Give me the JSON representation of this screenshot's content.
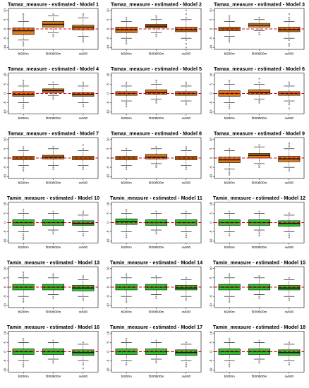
{
  "figure": {
    "panel_bg": "#ffffff",
    "frame_color": "#000000",
    "refline_color": "#dd0000",
    "colors": {
      "orange": "#d97c1e",
      "green": "#2fc42f"
    }
  },
  "chart_data": [
    {
      "type": "box",
      "title": "Tamax_measure - estimated - Model 1",
      "categories": [
        "bl200m",
        "f200t500m",
        "ov500"
      ],
      "yticks": [
        -10,
        -5,
        0,
        5,
        10
      ],
      "ylim": [
        -11,
        11
      ],
      "refline": 0,
      "color": "orange",
      "boxes": [
        {
          "whislo": -6,
          "q1": -3,
          "med": -1,
          "q3": 0.5,
          "whishi": 4,
          "fliers": [
            5,
            6,
            7,
            8,
            -7,
            -8,
            -9
          ]
        },
        {
          "whislo": -2,
          "q1": 1,
          "med": 2.5,
          "q3": 4,
          "whishi": 7,
          "fliers": [
            8,
            -3,
            -4
          ]
        },
        {
          "whislo": -4,
          "q1": -0.5,
          "med": 1,
          "q3": 2,
          "whishi": 6,
          "fliers": [
            7,
            8,
            -5,
            -6,
            -7
          ]
        }
      ]
    },
    {
      "type": "box",
      "title": "Tamax_measure - estimated - Model 2",
      "categories": [
        "bl200m",
        "f200t500m",
        "ov500"
      ],
      "yticks": [
        -10,
        -5,
        0,
        5,
        10
      ],
      "ylim": [
        -11,
        11
      ],
      "refline": 0,
      "color": "orange",
      "boxes": [
        {
          "whislo": -5,
          "q1": -2,
          "med": -0.5,
          "q3": 1,
          "whishi": 4,
          "fliers": [
            5,
            6,
            -6,
            -7,
            -8
          ]
        },
        {
          "whislo": -2,
          "q1": 0.5,
          "med": 1.5,
          "q3": 2.5,
          "whishi": 5,
          "fliers": [
            6,
            7,
            -3,
            -4
          ]
        },
        {
          "whislo": -5,
          "q1": -1.5,
          "med": -0.5,
          "q3": 1,
          "whishi": 5,
          "fliers": [
            6,
            8,
            10,
            -6,
            -8,
            -10
          ]
        }
      ]
    },
    {
      "type": "box",
      "title": "Tamax_measure - estimated - Model 3",
      "categories": [
        "bl200m",
        "f200t500m",
        "ov500"
      ],
      "yticks": [
        -10,
        -5,
        0,
        5,
        10
      ],
      "ylim": [
        -11,
        11
      ],
      "refline": 0,
      "color": "orange",
      "boxes": [
        {
          "whislo": -4,
          "q1": -1,
          "med": 0,
          "q3": 1,
          "whishi": 4,
          "fliers": [
            5,
            6,
            7,
            -5,
            -6,
            -7
          ]
        },
        {
          "whislo": -1,
          "q1": 1,
          "med": 2,
          "q3": 3,
          "whishi": 5,
          "fliers": [
            6,
            -2,
            -3
          ]
        },
        {
          "whislo": -5,
          "q1": -1.5,
          "med": -0.5,
          "q3": 1,
          "whishi": 4,
          "fliers": [
            5,
            6,
            8,
            -6,
            -8,
            -9
          ]
        }
      ]
    },
    {
      "type": "box",
      "title": "Tamax_measure - estimated - Model 4",
      "categories": [
        "bl200m",
        "f200t500m",
        "ov500"
      ],
      "yticks": [
        -10,
        -5,
        0,
        5,
        10
      ],
      "ylim": [
        -11,
        11
      ],
      "refline": 0,
      "color": "orange",
      "boxes": [
        {
          "whislo": -5,
          "q1": -1.5,
          "med": -0.5,
          "q3": 1,
          "whishi": 4,
          "fliers": [
            5,
            6,
            7,
            -6,
            -7,
            -8
          ]
        },
        {
          "whislo": -1,
          "q1": 0.5,
          "med": 1.5,
          "q3": 2.5,
          "whishi": 5,
          "fliers": [
            6,
            -2,
            -3
          ]
        },
        {
          "whislo": -5,
          "q1": -1.5,
          "med": -0.5,
          "q3": 0.5,
          "whishi": 4,
          "fliers": [
            5,
            6,
            -6,
            -7
          ]
        }
      ]
    },
    {
      "type": "box",
      "title": "Tamax_measure - estimated - Model 5",
      "categories": [
        "bl200m",
        "f200t500m",
        "ov500"
      ],
      "yticks": [
        -10,
        -5,
        0,
        5,
        10
      ],
      "ylim": [
        -11,
        11
      ],
      "refline": 0,
      "color": "orange",
      "boxes": [
        {
          "whislo": -4,
          "q1": -1,
          "med": 0,
          "q3": 1,
          "whishi": 4,
          "fliers": [
            5,
            6,
            -5,
            -6,
            -7
          ]
        },
        {
          "whislo": -3,
          "q1": -0.5,
          "med": 0.5,
          "q3": 2,
          "whishi": 5,
          "fliers": [
            6,
            7,
            -4,
            -5
          ]
        },
        {
          "whislo": -4,
          "q1": -1,
          "med": 0,
          "q3": 1,
          "whishi": 4,
          "fliers": [
            5,
            6,
            -5,
            -6
          ]
        }
      ]
    },
    {
      "type": "box",
      "title": "Tamax_measure - estimated - Model 6",
      "categories": [
        "bl200m",
        "f200t500m",
        "ov500"
      ],
      "yticks": [
        -10,
        -5,
        0,
        5,
        10
      ],
      "ylim": [
        -11,
        11
      ],
      "refline": 0,
      "color": "orange",
      "boxes": [
        {
          "whislo": -5,
          "q1": -1.5,
          "med": 0,
          "q3": 1.5,
          "whishi": 5,
          "fliers": [
            6,
            7,
            -6,
            -7,
            -8
          ]
        },
        {
          "whislo": -3,
          "q1": -0.5,
          "med": 0.5,
          "q3": 2,
          "whishi": 5,
          "fliers": [
            6,
            8,
            -4,
            -5
          ]
        },
        {
          "whislo": -4,
          "q1": -1,
          "med": 0,
          "q3": 1,
          "whishi": 4,
          "fliers": [
            5,
            6,
            -5,
            -6,
            -8
          ]
        }
      ]
    },
    {
      "type": "box",
      "title": "Tamax_measure - estimated - Model 7",
      "categories": [
        "bl200m",
        "f200t500m",
        "ov500"
      ],
      "yticks": [
        -10,
        -5,
        0,
        5,
        10
      ],
      "ylim": [
        -11,
        11
      ],
      "refline": 0,
      "color": "orange",
      "boxes": [
        {
          "whislo": -4,
          "q1": -1,
          "med": 0,
          "q3": 1,
          "whishi": 4,
          "fliers": [
            5,
            6,
            -5,
            -6,
            -7
          ]
        },
        {
          "whislo": -4,
          "q1": -0.5,
          "med": 0.5,
          "q3": 1.5,
          "whishi": 5,
          "fliers": [
            6,
            -5,
            -6
          ]
        },
        {
          "whislo": -4,
          "q1": -1,
          "med": 0,
          "q3": 1,
          "whishi": 4,
          "fliers": [
            5,
            7,
            -5,
            -6
          ]
        }
      ]
    },
    {
      "type": "box",
      "title": "Tamax_measure - estimated - Model 8",
      "categories": [
        "bl200m",
        "f200t500m",
        "ov500"
      ],
      "yticks": [
        -10,
        -5,
        0,
        5,
        10
      ],
      "ylim": [
        -11,
        11
      ],
      "refline": 0,
      "color": "orange",
      "boxes": [
        {
          "whislo": -4,
          "q1": -1,
          "med": 0,
          "q3": 1,
          "whishi": 4,
          "fliers": [
            5,
            -5,
            -6
          ]
        },
        {
          "whislo": -3,
          "q1": -0.5,
          "med": 0.5,
          "q3": 2,
          "whishi": 5,
          "fliers": [
            6,
            -4,
            -5
          ]
        },
        {
          "whislo": -4,
          "q1": -1,
          "med": 0,
          "q3": 1,
          "whishi": 4,
          "fliers": [
            5,
            6,
            -5,
            -6
          ]
        }
      ]
    },
    {
      "type": "box",
      "title": "Tamax_measure - estimated - Model 9",
      "categories": [
        "bl200m",
        "f200t500m",
        "ov500"
      ],
      "yticks": [
        -10,
        -5,
        0,
        5,
        10
      ],
      "ylim": [
        -11,
        11
      ],
      "refline": 0,
      "color": "orange",
      "boxes": [
        {
          "whislo": -6,
          "q1": -2.5,
          "med": -1,
          "q3": 0.5,
          "whishi": 4,
          "fliers": [
            5,
            -7,
            -8,
            -9
          ]
        },
        {
          "whislo": -3,
          "q1": 0,
          "med": 1.5,
          "q3": 2.5,
          "whishi": 6,
          "fliers": [
            7,
            -4,
            -5
          ]
        },
        {
          "whislo": -5,
          "q1": -2,
          "med": -0.5,
          "q3": 1,
          "whishi": 5,
          "fliers": [
            6,
            7,
            8,
            -6,
            -7
          ]
        }
      ]
    },
    {
      "type": "box",
      "title": "Tamin_measure - estimated - Model 10",
      "categories": [
        "bl200m",
        "f200t500m",
        "ov500"
      ],
      "yticks": [
        -10,
        -5,
        0,
        5,
        10
      ],
      "ylim": [
        -11,
        11
      ],
      "refline": 0,
      "color": "green",
      "boxes": [
        {
          "whislo": -5,
          "q1": -1.5,
          "med": 0,
          "q3": 1.5,
          "whishi": 5,
          "fliers": [
            6,
            7,
            -6,
            -7,
            -8,
            -9
          ]
        },
        {
          "whislo": -4,
          "q1": -1.5,
          "med": 0,
          "q3": 1.5,
          "whishi": 5,
          "fliers": [
            6,
            -5,
            -6
          ]
        },
        {
          "whislo": -5,
          "q1": -1.5,
          "med": -0.5,
          "q3": 1,
          "whishi": 4,
          "fliers": [
            5,
            6,
            -6,
            -7
          ]
        }
      ]
    },
    {
      "type": "box",
      "title": "Tamin_measure - estimated - Model 11",
      "categories": [
        "bl200m",
        "f200t500m",
        "ov500"
      ],
      "yticks": [
        -10,
        -5,
        0,
        5,
        10
      ],
      "ylim": [
        -11,
        11
      ],
      "refline": 0,
      "color": "green",
      "boxes": [
        {
          "whislo": -5,
          "q1": -1,
          "med": 0.5,
          "q3": 2,
          "whishi": 5,
          "fliers": [
            6,
            7,
            -6,
            -7,
            -8
          ]
        },
        {
          "whislo": -4,
          "q1": -1.5,
          "med": 0,
          "q3": 1.5,
          "whishi": 5,
          "fliers": [
            6,
            -5,
            -6
          ]
        },
        {
          "whislo": -5,
          "q1": -1.5,
          "med": 0,
          "q3": 1.5,
          "whishi": 5,
          "fliers": [
            6,
            -6,
            -7,
            -8
          ]
        }
      ]
    },
    {
      "type": "box",
      "title": "Tamin_measure - estimated - Model 12",
      "categories": [
        "bl200m",
        "f200t500m",
        "ov500"
      ],
      "yticks": [
        -10,
        -5,
        0,
        5,
        10
      ],
      "ylim": [
        -11,
        11
      ],
      "refline": 0,
      "color": "green",
      "boxes": [
        {
          "whislo": -5,
          "q1": -1.5,
          "med": 0,
          "q3": 1.5,
          "whishi": 5,
          "fliers": [
            6,
            -6,
            -7
          ]
        },
        {
          "whislo": -4,
          "q1": -1.5,
          "med": 0,
          "q3": 1.5,
          "whishi": 5,
          "fliers": [
            6,
            -5,
            -6,
            -7
          ]
        },
        {
          "whislo": -5,
          "q1": -2,
          "med": -0.5,
          "q3": 1,
          "whishi": 4,
          "fliers": [
            5,
            -6,
            -7,
            -8
          ]
        }
      ]
    },
    {
      "type": "box",
      "title": "Tamin_measure - estimated - Model 13",
      "categories": [
        "bl200m",
        "f200t500m",
        "ov500"
      ],
      "yticks": [
        -10,
        -5,
        0,
        5,
        10
      ],
      "ylim": [
        -11,
        11
      ],
      "refline": 0,
      "color": "green",
      "boxes": [
        {
          "whislo": -5,
          "q1": -1.5,
          "med": 0,
          "q3": 1.5,
          "whishi": 5,
          "fliers": [
            6,
            7,
            8,
            -6,
            -7,
            -8
          ]
        },
        {
          "whislo": -4,
          "q1": -1.5,
          "med": 0,
          "q3": 1.5,
          "whishi": 5,
          "fliers": [
            6,
            7,
            -5,
            -6
          ]
        },
        {
          "whislo": -5,
          "q1": -2,
          "med": -0.5,
          "q3": 1,
          "whishi": 4,
          "fliers": [
            5,
            6,
            -6,
            -7
          ]
        }
      ]
    },
    {
      "type": "box",
      "title": "Tamin_measure - estimated - Model 14",
      "categories": [
        "bl200m",
        "f200t500m",
        "ov500"
      ],
      "yticks": [
        -10,
        -5,
        0,
        5,
        10
      ],
      "ylim": [
        -11,
        11
      ],
      "refline": 0,
      "color": "green",
      "boxes": [
        {
          "whislo": -5,
          "q1": -1.5,
          "med": 0,
          "q3": 1.5,
          "whishi": 5,
          "fliers": [
            6,
            7,
            -6,
            -7,
            -8
          ]
        },
        {
          "whislo": -4,
          "q1": -1.5,
          "med": 0,
          "q3": 1.5,
          "whishi": 5,
          "fliers": [
            6,
            -5,
            -6
          ]
        },
        {
          "whislo": -5,
          "q1": -1.5,
          "med": -0.5,
          "q3": 1,
          "whishi": 4,
          "fliers": [
            5,
            -6,
            -7
          ]
        }
      ]
    },
    {
      "type": "box",
      "title": "Tamin_measure - estimated - Model 15",
      "categories": [
        "bl200m",
        "f200t500m",
        "ov500"
      ],
      "yticks": [
        -10,
        -5,
        0,
        5,
        10
      ],
      "ylim": [
        -11,
        11
      ],
      "refline": 0,
      "color": "green",
      "boxes": [
        {
          "whislo": -5,
          "q1": -1.5,
          "med": 0,
          "q3": 1.5,
          "whishi": 5,
          "fliers": [
            6,
            7,
            -6,
            -7,
            -8
          ]
        },
        {
          "whislo": -4,
          "q1": -1.5,
          "med": 0,
          "q3": 1.5,
          "whishi": 5,
          "fliers": [
            6,
            -5,
            -6
          ]
        },
        {
          "whislo": -5,
          "q1": -1.5,
          "med": -0.5,
          "q3": 1,
          "whishi": 4,
          "fliers": [
            5,
            -6,
            -7
          ]
        }
      ]
    },
    {
      "type": "box",
      "title": "Tamin_measure - estimated - Model 16",
      "categories": [
        "bl200m",
        "f200t500m",
        "ov500"
      ],
      "yticks": [
        -10,
        -5,
        0,
        5,
        10
      ],
      "ylim": [
        -11,
        11
      ],
      "refline": 0,
      "color": "green",
      "boxes": [
        {
          "whislo": -5,
          "q1": -1.5,
          "med": 0,
          "q3": 1.5,
          "whishi": 5,
          "fliers": [
            6,
            7,
            -6,
            -7,
            -8
          ]
        },
        {
          "whislo": -4,
          "q1": -1.5,
          "med": 0,
          "q3": 1.5,
          "whishi": 5,
          "fliers": [
            6,
            -5,
            -6
          ]
        },
        {
          "whislo": -5,
          "q1": -2,
          "med": -0.5,
          "q3": 1,
          "whishi": 4,
          "fliers": [
            5,
            -6,
            -7,
            -9
          ]
        }
      ]
    },
    {
      "type": "box",
      "title": "Tamin_measure - estimated - Model 17",
      "categories": [
        "bl200m",
        "f200t500m",
        "ov500"
      ],
      "yticks": [
        -10,
        -5,
        0,
        5,
        10
      ],
      "ylim": [
        -11,
        11
      ],
      "refline": 0,
      "color": "green",
      "boxes": [
        {
          "whislo": -5,
          "q1": -1.5,
          "med": 0,
          "q3": 1.5,
          "whishi": 5,
          "fliers": [
            6,
            7,
            -6,
            -7
          ]
        },
        {
          "whislo": -4,
          "q1": -1.5,
          "med": 0,
          "q3": 1.5,
          "whishi": 5,
          "fliers": [
            6,
            -5,
            -6
          ]
        },
        {
          "whislo": -5,
          "q1": -2,
          "med": -0.5,
          "q3": 1,
          "whishi": 4,
          "fliers": [
            5,
            -6,
            -7,
            -8
          ]
        }
      ]
    },
    {
      "type": "box",
      "title": "Tamin_measure - estimated - Model 18",
      "categories": [
        "bl200m",
        "f200t500m",
        "ov500"
      ],
      "yticks": [
        -10,
        -5,
        0,
        5,
        10
      ],
      "ylim": [
        -11,
        11
      ],
      "refline": 0,
      "color": "green",
      "boxes": [
        {
          "whislo": -5,
          "q1": -1.5,
          "med": 0,
          "q3": 1.5,
          "whishi": 5,
          "fliers": [
            6,
            7,
            -6,
            -7,
            -8
          ]
        },
        {
          "whislo": -4,
          "q1": -1.5,
          "med": 0,
          "q3": 1.5,
          "whishi": 5,
          "fliers": [
            6,
            -5,
            -6
          ]
        },
        {
          "whislo": -5,
          "q1": -2,
          "med": -0.5,
          "q3": 1,
          "whishi": 4,
          "fliers": [
            5,
            -6,
            -7
          ]
        }
      ]
    }
  ]
}
